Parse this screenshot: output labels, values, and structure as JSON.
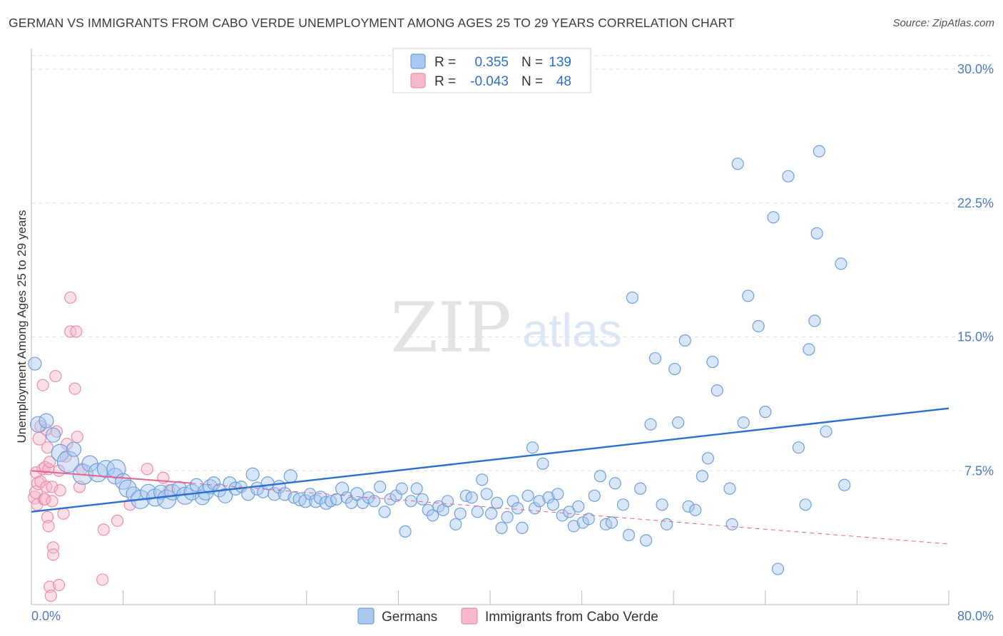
{
  "header": {
    "title": "GERMAN VS IMMIGRANTS FROM CABO VERDE UNEMPLOYMENT AMONG AGES 25 TO 29 YEARS CORRELATION CHART",
    "source": "Source: ZipAtlas.com"
  },
  "watermark": {
    "zip": "ZIP",
    "atlas": "atlas"
  },
  "stats": {
    "german": {
      "r_label": "R =",
      "r_value": "0.355",
      "n_label": "N =",
      "n_value": "139"
    },
    "cabo": {
      "r_label": "R =",
      "r_value": "-0.043",
      "n_label": "N =",
      "n_value": "48"
    }
  },
  "colors": {
    "german_fill": "#a8c8f0",
    "german_stroke": "#6f9fdd",
    "german_line": "#2b6fcf",
    "cabo_fill": "#f6b8cb",
    "cabo_stroke": "#ec8fab",
    "cabo_line": "#e8628c",
    "axis_text": "#4a7cc7",
    "grid": "#dddddd"
  },
  "chart_data": {
    "type": "scatter",
    "title": "GERMAN VS IMMIGRANTS FROM CABO VERDE UNEMPLOYMENT AMONG AGES 25 TO 29 YEARS CORRELATION CHART",
    "xlabel": "",
    "ylabel": "Unemployment Among Ages 25 to 29 years",
    "xlim": [
      0,
      80
    ],
    "ylim": [
      0,
      31
    ],
    "x_tick_labels": [
      "0.0%",
      "80.0%"
    ],
    "y_ticks": [
      7.5,
      15.0,
      22.5,
      30.0
    ],
    "y_tick_labels": [
      "7.5%",
      "15.0%",
      "22.5%",
      "30.0%"
    ],
    "grid": "horizontal dashed",
    "legend": [
      "Germans",
      "Immigrants from Cabo Verde"
    ],
    "series": [
      {
        "name": "Germans",
        "trend": {
          "x": [
            0,
            80
          ],
          "y": [
            5.2,
            11.0
          ]
        },
        "points": [
          [
            0.3,
            13.5,
            9
          ],
          [
            0.6,
            10.1,
            11
          ],
          [
            1.3,
            10.3,
            10
          ],
          [
            1.9,
            9.5,
            10
          ],
          [
            2.5,
            8.5,
            12
          ],
          [
            3.2,
            8.0,
            15
          ],
          [
            3.7,
            8.7,
            10
          ],
          [
            4.5,
            7.3,
            14
          ],
          [
            5.1,
            7.9,
            11
          ],
          [
            5.8,
            7.4,
            13
          ],
          [
            6.5,
            7.6,
            12
          ],
          [
            7.3,
            7.2,
            11
          ],
          [
            7.4,
            7.6,
            13
          ],
          [
            8.0,
            6.9,
            11
          ],
          [
            8.4,
            6.5,
            12
          ],
          [
            8.9,
            6.2,
            10
          ],
          [
            9.5,
            5.9,
            13
          ],
          [
            10.2,
            6.3,
            11
          ],
          [
            10.8,
            6.0,
            12
          ],
          [
            11.3,
            6.3,
            10
          ],
          [
            11.8,
            5.9,
            13
          ],
          [
            12.3,
            6.3,
            11
          ],
          [
            12.9,
            6.5,
            10
          ],
          [
            13.4,
            6.1,
            12
          ],
          [
            14.0,
            6.3,
            11
          ],
          [
            14.4,
            6.7,
            9
          ],
          [
            14.9,
            6.0,
            10
          ],
          [
            15.2,
            6.3,
            11
          ],
          [
            15.6,
            6.6,
            10
          ],
          [
            15.9,
            6.8,
            9
          ],
          [
            16.4,
            6.4,
            9
          ],
          [
            16.9,
            6.1,
            10
          ],
          [
            17.3,
            6.8,
            9
          ],
          [
            17.8,
            6.5,
            9
          ],
          [
            18.3,
            6.6,
            8
          ],
          [
            18.9,
            6.2,
            9
          ],
          [
            19.3,
            7.3,
            9
          ],
          [
            19.7,
            6.5,
            9
          ],
          [
            20.2,
            6.3,
            8
          ],
          [
            20.6,
            6.8,
            9
          ],
          [
            21.2,
            6.2,
            9
          ],
          [
            21.6,
            6.6,
            9
          ],
          [
            22.1,
            6.2,
            9
          ],
          [
            22.6,
            7.2,
            9
          ],
          [
            22.9,
            6.0,
            8
          ],
          [
            23.4,
            5.9,
            9
          ],
          [
            23.9,
            5.8,
            9
          ],
          [
            24.3,
            6.2,
            8
          ],
          [
            24.8,
            5.8,
            9
          ],
          [
            25.2,
            6.0,
            9
          ],
          [
            25.7,
            5.7,
            9
          ],
          [
            26.1,
            5.8,
            8
          ],
          [
            26.6,
            5.9,
            8
          ],
          [
            27.1,
            6.5,
            9
          ],
          [
            27.5,
            6.0,
            8
          ],
          [
            27.9,
            5.7,
            8
          ],
          [
            28.4,
            6.2,
            9
          ],
          [
            28.9,
            5.7,
            8
          ],
          [
            29.4,
            6.0,
            8
          ],
          [
            29.9,
            5.8,
            8
          ],
          [
            30.4,
            6.6,
            8
          ],
          [
            30.8,
            5.2,
            8
          ],
          [
            31.3,
            5.9,
            8
          ],
          [
            31.8,
            6.1,
            8
          ],
          [
            32.3,
            6.5,
            8
          ],
          [
            32.6,
            4.1,
            8
          ],
          [
            33.1,
            5.8,
            8
          ],
          [
            33.6,
            6.5,
            8
          ],
          [
            34.1,
            5.9,
            8
          ],
          [
            34.6,
            5.3,
            8
          ],
          [
            35.0,
            5.0,
            8
          ],
          [
            35.5,
            5.5,
            8
          ],
          [
            35.9,
            5.3,
            8
          ],
          [
            36.3,
            5.8,
            8
          ],
          [
            37.0,
            4.5,
            8
          ],
          [
            37.4,
            5.1,
            8
          ],
          [
            37.9,
            6.1,
            8
          ],
          [
            38.4,
            6.0,
            8
          ],
          [
            38.9,
            5.2,
            8
          ],
          [
            39.3,
            7.0,
            8
          ],
          [
            39.7,
            6.2,
            8
          ],
          [
            40.1,
            5.1,
            8
          ],
          [
            40.6,
            5.7,
            8
          ],
          [
            41.0,
            4.3,
            8
          ],
          [
            41.5,
            4.9,
            8
          ],
          [
            42.0,
            5.8,
            8
          ],
          [
            42.4,
            5.4,
            8
          ],
          [
            42.8,
            4.3,
            8
          ],
          [
            43.3,
            6.1,
            8
          ],
          [
            43.7,
            8.8,
            8
          ],
          [
            43.9,
            5.4,
            8
          ],
          [
            44.3,
            5.8,
            8
          ],
          [
            44.6,
            7.9,
            8
          ],
          [
            45.1,
            6.0,
            8
          ],
          [
            45.5,
            5.6,
            8
          ],
          [
            45.9,
            6.2,
            8
          ],
          [
            46.3,
            5.0,
            8
          ],
          [
            46.9,
            5.2,
            8
          ],
          [
            47.3,
            4.4,
            8
          ],
          [
            47.7,
            5.5,
            8
          ],
          [
            48.1,
            4.6,
            8
          ],
          [
            48.6,
            4.8,
            8
          ],
          [
            49.1,
            6.1,
            8
          ],
          [
            49.6,
            7.2,
            8
          ],
          [
            50.1,
            4.5,
            8
          ],
          [
            50.6,
            4.6,
            8
          ],
          [
            50.9,
            6.8,
            8
          ],
          [
            51.6,
            5.6,
            8
          ],
          [
            52.1,
            3.9,
            8
          ],
          [
            52.4,
            17.2,
            8
          ],
          [
            53.1,
            6.5,
            8
          ],
          [
            53.6,
            3.6,
            8
          ],
          [
            54.0,
            10.1,
            8
          ],
          [
            54.4,
            13.8,
            8
          ],
          [
            55.0,
            5.6,
            8
          ],
          [
            55.4,
            4.5,
            8
          ],
          [
            56.1,
            13.2,
            8
          ],
          [
            56.4,
            10.2,
            8
          ],
          [
            57.0,
            14.8,
            8
          ],
          [
            57.3,
            5.5,
            8
          ],
          [
            57.9,
            5.3,
            8
          ],
          [
            58.5,
            7.2,
            8
          ],
          [
            59.0,
            8.2,
            8
          ],
          [
            59.4,
            13.6,
            8
          ],
          [
            59.8,
            12.0,
            8
          ],
          [
            60.9,
            6.5,
            8
          ],
          [
            61.1,
            4.5,
            8
          ],
          [
            61.6,
            24.7,
            8
          ],
          [
            62.1,
            10.2,
            8
          ],
          [
            62.5,
            17.3,
            8
          ],
          [
            63.4,
            15.6,
            8
          ],
          [
            64.0,
            10.8,
            8
          ],
          [
            64.7,
            21.7,
            8
          ],
          [
            65.1,
            2.0,
            8
          ],
          [
            66.0,
            24.0,
            8
          ],
          [
            66.9,
            8.8,
            8
          ],
          [
            67.5,
            5.6,
            8
          ],
          [
            67.8,
            14.3,
            8
          ],
          [
            68.3,
            15.9,
            8
          ],
          [
            68.5,
            20.8,
            8
          ],
          [
            68.7,
            25.4,
            8
          ],
          [
            69.3,
            9.7,
            8
          ],
          [
            70.6,
            19.1,
            8
          ],
          [
            70.9,
            6.7,
            8
          ]
        ]
      },
      {
        "name": "Immigrants from Cabo Verde",
        "trend": {
          "x": [
            0,
            14,
            80
          ],
          "y": [
            7.5,
            6.8,
            3.4
          ]
        },
        "points": [
          [
            0.3,
            6.0,
            9
          ],
          [
            0.4,
            7.4,
            8
          ],
          [
            0.4,
            6.3,
            9
          ],
          [
            0.5,
            5.6,
            8
          ],
          [
            0.6,
            6.8,
            9
          ],
          [
            0.7,
            9.3,
            9
          ],
          [
            0.8,
            10.0,
            8
          ],
          [
            0.8,
            6.9,
            8
          ],
          [
            1.0,
            12.3,
            8
          ],
          [
            1.0,
            7.6,
            8
          ],
          [
            1.1,
            5.9,
            8
          ],
          [
            1.2,
            5.9,
            8
          ],
          [
            1.2,
            7.7,
            8
          ],
          [
            1.3,
            6.6,
            8
          ],
          [
            1.3,
            9.8,
            8
          ],
          [
            1.4,
            8.8,
            8
          ],
          [
            1.4,
            4.9,
            8
          ],
          [
            1.5,
            4.4,
            8
          ],
          [
            1.5,
            7.6,
            8
          ],
          [
            1.6,
            8.0,
            8
          ],
          [
            1.6,
            1.0,
            8
          ],
          [
            1.7,
            0.5,
            8
          ],
          [
            1.8,
            6.6,
            8
          ],
          [
            1.8,
            5.8,
            8
          ],
          [
            1.9,
            3.2,
            8
          ],
          [
            1.9,
            2.8,
            8
          ],
          [
            2.1,
            12.8,
            8
          ],
          [
            2.2,
            9.7,
            8
          ],
          [
            2.4,
            1.1,
            8
          ],
          [
            2.4,
            7.5,
            8
          ],
          [
            2.5,
            6.4,
            8
          ],
          [
            2.8,
            5.1,
            8
          ],
          [
            3.0,
            8.3,
            8
          ],
          [
            3.1,
            9.0,
            8
          ],
          [
            3.4,
            17.2,
            8
          ],
          [
            3.4,
            15.3,
            8
          ],
          [
            3.8,
            12.1,
            8
          ],
          [
            3.9,
            15.3,
            8
          ],
          [
            4.0,
            9.4,
            8
          ],
          [
            4.2,
            6.6,
            8
          ],
          [
            4.4,
            7.6,
            8
          ],
          [
            6.2,
            1.4,
            8
          ],
          [
            6.3,
            4.2,
            8
          ],
          [
            7.5,
            4.7,
            8
          ],
          [
            8.6,
            5.6,
            8
          ],
          [
            10.1,
            7.6,
            8
          ],
          [
            11.5,
            7.1,
            8
          ],
          [
            12.0,
            6.4,
            8
          ]
        ]
      }
    ]
  },
  "legend": {
    "items": [
      "Germans",
      "Immigrants from Cabo Verde"
    ]
  }
}
